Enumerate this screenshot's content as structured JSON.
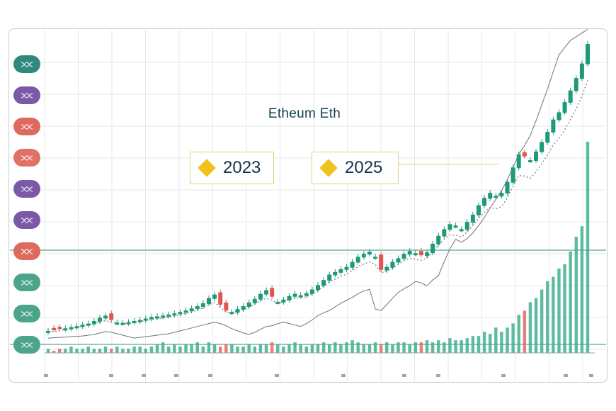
{
  "chart_data": {
    "type": "candlestick",
    "title": "Etheum Eth",
    "annotations": [
      "2023",
      "2025"
    ],
    "colors": {
      "up": "#1f9a78",
      "down": "#e0574f",
      "ma_dotted": "#8a8f94",
      "trend_line": "#6e7378",
      "hline": "#5fa39a",
      "volume_up": "#41b08f",
      "volume_down": "#e06a63",
      "annotation_marker": "#f1c21b"
    },
    "price_close": [
      10,
      12,
      15,
      17,
      20,
      23,
      27,
      30,
      37,
      46,
      52,
      40,
      33,
      32,
      34,
      37,
      40,
      44,
      48,
      50,
      52,
      55,
      58,
      62,
      66,
      72,
      78,
      86,
      100,
      110,
      82,
      66,
      62,
      70,
      78,
      88,
      98,
      112,
      122,
      104,
      90,
      96,
      106,
      112,
      108,
      114,
      124,
      136,
      150,
      165,
      172,
      180,
      186,
      200,
      214,
      222,
      228,
      214,
      178,
      186,
      200,
      210,
      222,
      230,
      224,
      218,
      226,
      250,
      272,
      290,
      304,
      300,
      290,
      310,
      330,
      356,
      376,
      390,
      382,
      390,
      420,
      460,
      496,
      490,
      480,
      504,
      530,
      558,
      592,
      612,
      640,
      672,
      706,
      746,
      800
    ],
    "down_indices": [
      1,
      2,
      11,
      30,
      31,
      39,
      58,
      65,
      83
    ],
    "ma_dotted": [
      6,
      8,
      11,
      14,
      17,
      20,
      23,
      26,
      30,
      35,
      38,
      34,
      31,
      30,
      31,
      33,
      35,
      38,
      41,
      43,
      45,
      48,
      51,
      54,
      58,
      62,
      67,
      73,
      82,
      88,
      74,
      62,
      60,
      64,
      69,
      76,
      84,
      93,
      100,
      94,
      86,
      89,
      96,
      101,
      100,
      104,
      112,
      121,
      133,
      145,
      152,
      160,
      166,
      176,
      187,
      194,
      200,
      192,
      170,
      174,
      184,
      193,
      203,
      210,
      207,
      204,
      210,
      228,
      246,
      262,
      274,
      274,
      268,
      283,
      300,
      320,
      336,
      350,
      346,
      352,
      376,
      408,
      438,
      436,
      430,
      448,
      470,
      494,
      522,
      540,
      564,
      592,
      622,
      656,
      700
    ],
    "trend_line": [
      -10,
      -9,
      -8,
      -7,
      -6,
      -5,
      -4,
      -2,
      0,
      4,
      8,
      6,
      2,
      -2,
      -6,
      -10,
      -8,
      -6,
      -4,
      -2,
      0,
      2,
      6,
      10,
      14,
      18,
      22,
      26,
      30,
      34,
      30,
      24,
      16,
      10,
      4,
      0,
      6,
      14,
      22,
      24,
      30,
      34,
      30,
      26,
      22,
      30,
      40,
      52,
      60,
      66,
      76,
      86,
      94,
      102,
      112,
      120,
      124,
      70,
      66,
      82,
      100,
      116,
      126,
      134,
      146,
      142,
      134,
      150,
      162,
      200,
      236,
      262,
      254,
      264,
      280,
      300,
      322,
      348,
      372,
      396,
      426,
      460,
      496,
      520,
      548,
      588,
      632,
      676,
      724,
      770,
      790,
      810,
      820,
      830,
      840
    ],
    "volume": [
      2,
      1,
      2,
      2,
      3,
      2,
      2,
      3,
      2,
      2,
      3,
      2,
      3,
      2,
      2,
      3,
      3,
      2,
      3,
      4,
      5,
      3,
      4,
      3,
      4,
      4,
      5,
      3,
      5,
      4,
      3,
      4,
      4,
      3,
      3,
      4,
      3,
      4,
      4,
      5,
      4,
      3,
      4,
      5,
      4,
      3,
      4,
      4,
      5,
      4,
      5,
      4,
      5,
      6,
      5,
      4,
      4,
      5,
      4,
      5,
      4,
      5,
      5,
      4,
      5,
      5,
      6,
      5,
      6,
      5,
      7,
      6,
      6,
      7,
      8,
      8,
      10,
      9,
      12,
      10,
      12,
      14,
      18,
      20,
      24,
      26,
      30,
      34,
      36,
      40,
      42,
      48,
      55,
      60,
      100
    ],
    "hlines": [
      "upper",
      "lower"
    ]
  }
}
